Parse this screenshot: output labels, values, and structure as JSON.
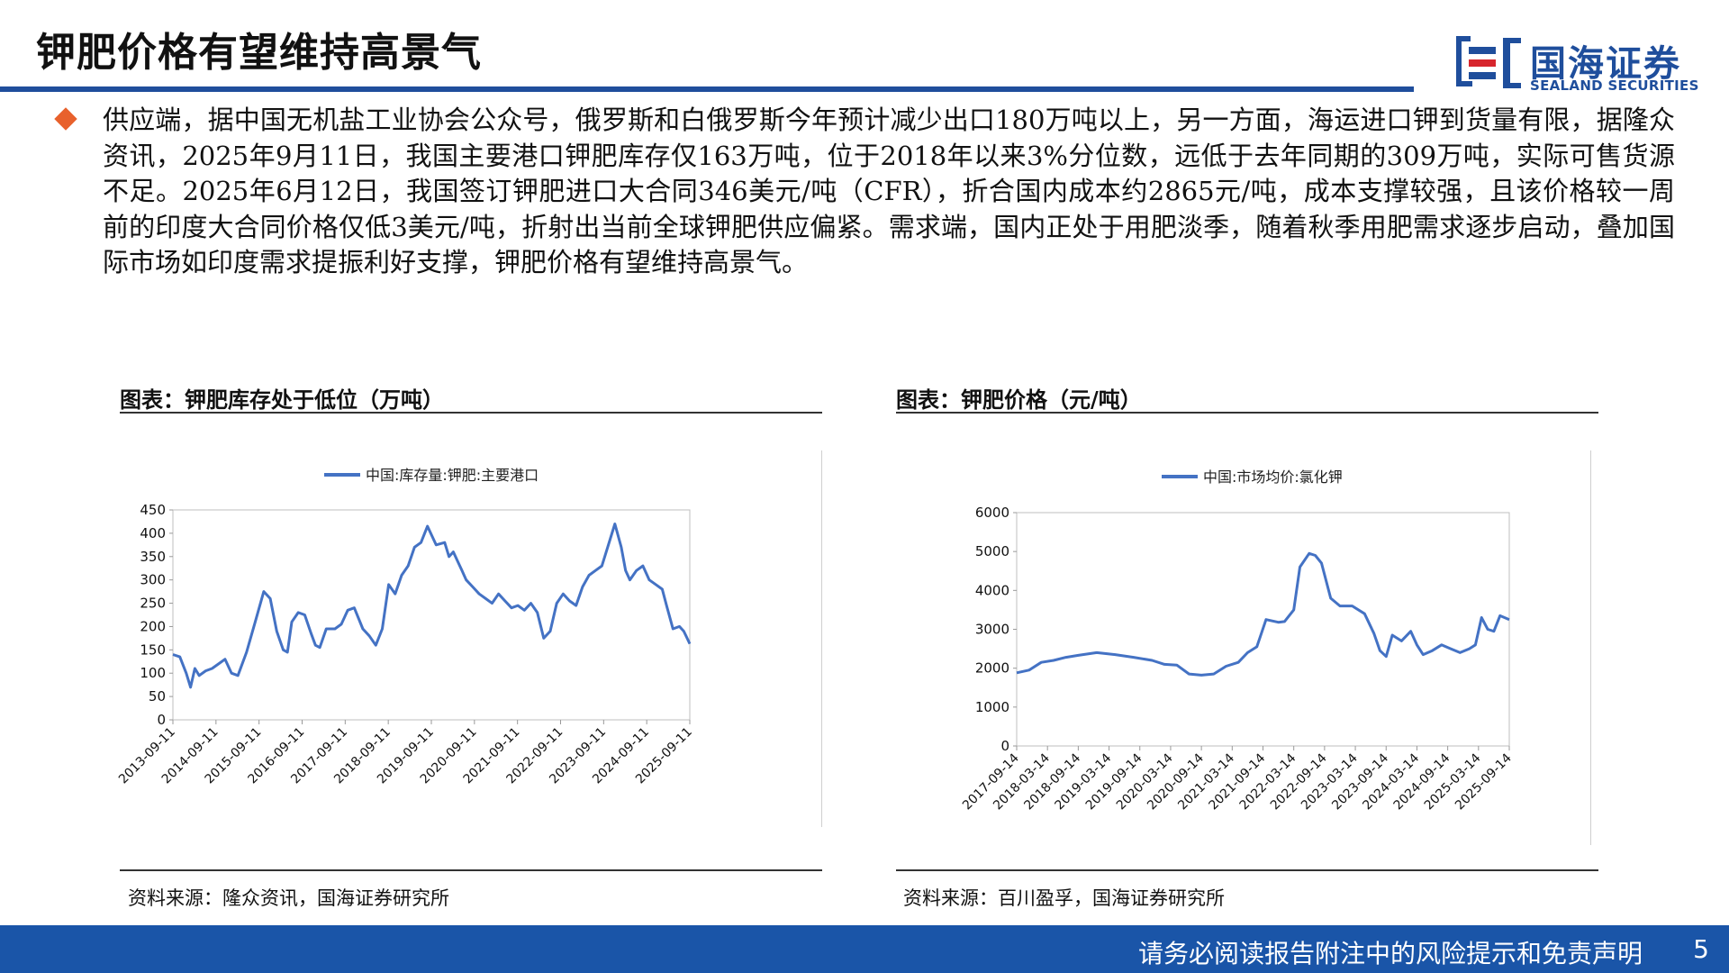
{
  "header": {
    "title": "钾肥价格有望维持高景气",
    "logo": {
      "name_cn": "国海证券",
      "name_en": "SEALAND SECURITIES"
    }
  },
  "body": {
    "paragraph": "供应端，据中国无机盐工业协会公众号，俄罗斯和白俄罗斯今年预计减少出口180万吨以上，另一方面，海运进口钾到货量有限，据隆众资讯，2025年9月11日，我国主要港口钾肥库存仅163万吨，位于2018年以来3%分位数，远低于去年同期的309万吨，实际可售货源不足。2025年6月12日，我国签订钾肥进口大合同346美元/吨（CFR），折合国内成本约2865元/吨，成本支撑较强，且该价格较一周前的印度大合同价格仅低3美元/吨，折射出当前全球钾肥供应偏紧。需求端，国内正处于用肥淡季，随着秋季用肥需求逐步启动，叠加国际市场如印度需求提振利好支撑，钾肥价格有望维持高景气。"
  },
  "charts": [
    {
      "title": "图表：钾肥库存处于低位（万吨）",
      "source": "资料来源：隆众资讯，国海证券研究所"
    },
    {
      "title": "图表：钾肥价格（元/吨）",
      "source": "资料来源：百川盈孚，国海证券研究所"
    }
  ],
  "chart_data": [
    {
      "type": "line",
      "legend_position": "top",
      "ylim": [
        0,
        450
      ],
      "yticks": [
        0,
        50,
        100,
        150,
        200,
        250,
        300,
        350,
        400,
        450
      ],
      "xlim": [
        2013.69,
        2025.69
      ],
      "xtick_labels": [
        "2013-09-11",
        "2014-09-11",
        "2015-09-11",
        "2016-09-11",
        "2017-09-11",
        "2018-09-11",
        "2019-09-11",
        "2020-09-11",
        "2021-09-11",
        "2022-09-11",
        "2023-09-11",
        "2024-09-11",
        "2025-09-11"
      ],
      "series": [
        {
          "name": "中国:库存量:钾肥:主要港口",
          "color": "#4472c4",
          "x": [
            2013.69,
            2013.85,
            2014.0,
            2014.1,
            2014.2,
            2014.3,
            2014.45,
            2014.6,
            2014.75,
            2014.9,
            2015.05,
            2015.2,
            2015.4,
            2015.6,
            2015.8,
            2015.95,
            2016.1,
            2016.25,
            2016.35,
            2016.45,
            2016.6,
            2016.75,
            2016.9,
            2017.0,
            2017.1,
            2017.25,
            2017.45,
            2017.6,
            2017.75,
            2017.9,
            2018.1,
            2018.25,
            2018.4,
            2018.55,
            2018.7,
            2018.85,
            2019.0,
            2019.15,
            2019.3,
            2019.45,
            2019.6,
            2019.8,
            2020.0,
            2020.1,
            2020.2,
            2020.3,
            2020.4,
            2020.5,
            2020.65,
            2020.8,
            2020.95,
            2021.1,
            2021.25,
            2021.4,
            2021.55,
            2021.7,
            2021.85,
            2022.0,
            2022.15,
            2022.3,
            2022.45,
            2022.6,
            2022.75,
            2022.9,
            2023.05,
            2023.2,
            2023.35,
            2023.5,
            2023.65,
            2023.8,
            2023.95,
            2024.1,
            2024.2,
            2024.3,
            2024.45,
            2024.6,
            2024.75,
            2024.9,
            2025.05,
            2025.15,
            2025.3,
            2025.45,
            2025.55,
            2025.69
          ],
          "values": [
            140,
            135,
            100,
            70,
            110,
            95,
            105,
            110,
            120,
            130,
            100,
            95,
            145,
            210,
            275,
            260,
            190,
            150,
            145,
            210,
            230,
            225,
            185,
            160,
            155,
            195,
            195,
            205,
            235,
            240,
            195,
            180,
            160,
            195,
            290,
            270,
            310,
            330,
            370,
            380,
            415,
            375,
            380,
            350,
            360,
            340,
            320,
            300,
            285,
            270,
            260,
            250,
            270,
            255,
            240,
            245,
            235,
            250,
            230,
            175,
            190,
            250,
            270,
            255,
            245,
            285,
            310,
            320,
            330,
            375,
            420,
            370,
            320,
            300,
            320,
            330,
            300,
            290,
            280,
            245,
            195,
            200,
            190,
            163
          ]
        }
      ]
    },
    {
      "type": "line",
      "legend_position": "top",
      "ylim": [
        0,
        6000
      ],
      "yticks": [
        0,
        1000,
        2000,
        3000,
        4000,
        5000,
        6000
      ],
      "xlim": [
        2017.7,
        2025.7
      ],
      "xtick_labels": [
        "2017-09-14",
        "2018-03-14",
        "2018-09-14",
        "2019-03-14",
        "2019-09-14",
        "2020-03-14",
        "2020-09-14",
        "2021-03-14",
        "2021-09-14",
        "2022-03-14",
        "2022-09-14",
        "2023-03-14",
        "2023-09-14",
        "2024-03-14",
        "2024-09-14",
        "2025-03-14",
        "2025-09-14"
      ],
      "series": [
        {
          "name": "中国:市场均价:氯化钾",
          "color": "#4472c4",
          "x": [
            2017.7,
            2017.9,
            2018.1,
            2018.3,
            2018.5,
            2018.7,
            2019.0,
            2019.3,
            2019.6,
            2019.9,
            2020.1,
            2020.3,
            2020.5,
            2020.7,
            2020.9,
            2021.1,
            2021.3,
            2021.45,
            2021.6,
            2021.75,
            2021.95,
            2022.05,
            2022.2,
            2022.3,
            2022.45,
            2022.55,
            2022.65,
            2022.8,
            2022.95,
            2023.15,
            2023.35,
            2023.5,
            2023.6,
            2023.7,
            2023.8,
            2023.95,
            2024.1,
            2024.2,
            2024.3,
            2024.45,
            2024.6,
            2024.75,
            2024.9,
            2025.05,
            2025.15,
            2025.25,
            2025.35,
            2025.45,
            2025.55,
            2025.7
          ],
          "values": [
            1880,
            1950,
            2150,
            2200,
            2280,
            2330,
            2400,
            2350,
            2280,
            2200,
            2100,
            2080,
            1850,
            1820,
            1850,
            2050,
            2150,
            2400,
            2550,
            3250,
            3180,
            3200,
            3500,
            4600,
            4950,
            4900,
            4700,
            3800,
            3600,
            3600,
            3400,
            2900,
            2450,
            2300,
            2850,
            2700,
            2950,
            2600,
            2350,
            2450,
            2600,
            2500,
            2400,
            2500,
            2600,
            3300,
            3000,
            2950,
            3350,
            3250
          ]
        }
      ]
    }
  ],
  "footer": {
    "disclaimer": "请务必阅读报告附注中的风险提示和免责声明",
    "page": "5"
  }
}
